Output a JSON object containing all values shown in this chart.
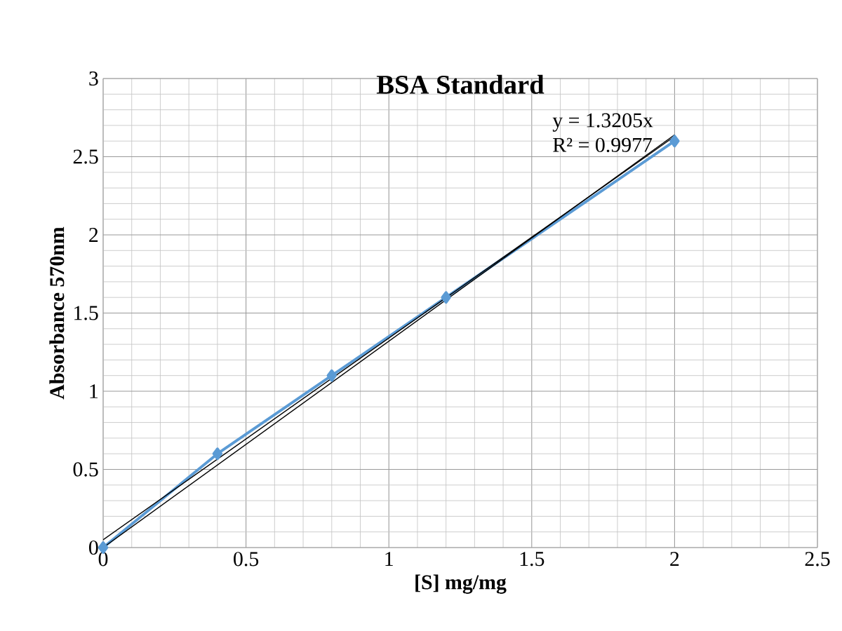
{
  "chart_data": {
    "type": "line",
    "title": "BSA Standard",
    "xlabel": "[S] mg/mg",
    "ylabel": "Absorbance 570nm",
    "series": [
      {
        "color": "#5b9bd5",
        "x": [
          0,
          0.4,
          0.8,
          1.2,
          2
        ],
        "values": [
          0,
          0.6,
          1.1,
          1.6,
          2.6
        ]
      },
      {
        "color": "#000000",
        "x": [
          0,
          2
        ],
        "values": [
          0,
          2.64
        ],
        "marker": "none"
      },
      {
        "color": "#000000",
        "x": [
          0,
          2
        ],
        "values": [
          0.05,
          2.63
        ],
        "marker": "none"
      }
    ],
    "annotations": [
      "y = 1.3205x",
      "R² = 0.9977"
    ],
    "xlim": [
      0,
      2.5
    ],
    "ylim": [
      0,
      3
    ],
    "xticks": [
      0,
      0.5,
      1,
      1.5,
      2,
      2.5
    ],
    "yticks": [
      0,
      0.5,
      1,
      1.5,
      2,
      2.5,
      3
    ],
    "grid": true,
    "marker": "diamond",
    "line_style": "solid"
  }
}
